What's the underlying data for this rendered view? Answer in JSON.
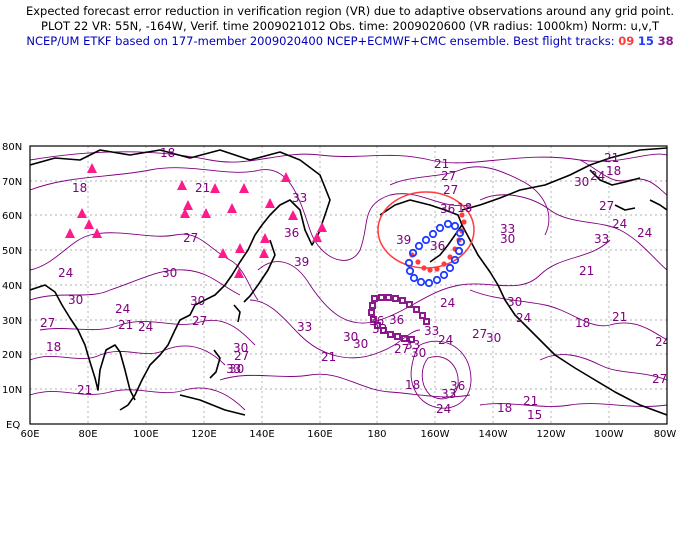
{
  "header": {
    "line1": "Expected forecast error reduction in verification region (VR) due to adaptive observations around any grid point.",
    "line2": "PLOT 22 VR: 55N, -164W, Verif. time 2009021012 Obs. time: 2009020600 (VR radius: 1000km) Norm: u,v,T",
    "line3_prefix": "NCEP/UM ETKF based on 177-member 2009020400 NCEP+ECMWF+CMC ensemble. Best flight tracks:",
    "tracks": [
      {
        "label": "09",
        "color": "#ff3b3b"
      },
      {
        "label": "15",
        "color": "#1e3cff"
      },
      {
        "label": "38",
        "color": "#8b1a8b"
      }
    ]
  },
  "map": {
    "lat_labels": [
      "80N",
      "70N",
      "60N",
      "50N",
      "40N",
      "30N",
      "20N",
      "10N",
      "EQ"
    ],
    "lon_labels": [
      "60E",
      "80E",
      "100E",
      "120E",
      "140E",
      "160E",
      "180",
      "160W",
      "140W",
      "120W",
      "100W",
      "80W"
    ],
    "contour_labels": [
      "18",
      "18",
      "21",
      "27",
      "24",
      "30",
      "30",
      "27",
      "21",
      "18",
      "24",
      "30",
      "27",
      "24",
      "21",
      "39",
      "36",
      "33",
      "33",
      "36",
      "30",
      "36",
      "33",
      "21",
      "24",
      "33",
      "36",
      "39",
      "36",
      "30",
      "24",
      "33",
      "30",
      "27",
      "24",
      "18",
      "36",
      "33",
      "30",
      "27",
      "30",
      "24",
      "18",
      "21",
      "15",
      "30",
      "27",
      "33",
      "30",
      "24",
      "33",
      "27",
      "24",
      "21",
      "18",
      "21",
      "24",
      "27",
      "30",
      "24",
      "21",
      "18",
      "21",
      "27",
      "27",
      "18",
      "33",
      "30"
    ],
    "colors": {
      "contour": "#800080",
      "vr_circle": "#ff3b3b",
      "track_09": "#ff3b3b",
      "track_15": "#1e3cff",
      "track_38": "#8b1a8b",
      "markers": "#ff1a8c"
    }
  }
}
